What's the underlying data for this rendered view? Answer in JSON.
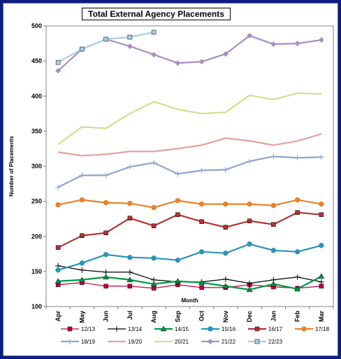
{
  "chart_data": {
    "type": "line",
    "title": "Total External Agency Placements",
    "xlabel": "Month",
    "ylabel": "Number of Placements",
    "ylim": [
      100,
      500
    ],
    "yticks": [
      100,
      150,
      200,
      250,
      300,
      350,
      400,
      450,
      500
    ],
    "grid": false,
    "legend_position": "bottom",
    "categories": [
      "Apr",
      "May",
      "Jun",
      "Jul",
      "Aug",
      "Sep",
      "Oct",
      "Nov",
      "Dec",
      "Jan",
      "Feb",
      "Mar"
    ],
    "series": [
      {
        "name": "12/13",
        "color": "#c0003c",
        "marker": "square",
        "values": [
          131,
          134,
          129,
          129,
          126,
          131,
          127,
          127,
          131,
          128,
          126,
          129
        ]
      },
      {
        "name": "13/14",
        "color": "#000000",
        "marker": "plus",
        "values": [
          158,
          152,
          149,
          149,
          138,
          135,
          135,
          139,
          133,
          138,
          142,
          135
        ]
      },
      {
        "name": "14/15",
        "color": "#009944",
        "marker": "triangle",
        "values": [
          136,
          138,
          142,
          138,
          132,
          136,
          134,
          129,
          124,
          132,
          125,
          143
        ]
      },
      {
        "name": "15/16",
        "color": "#2a94b8",
        "marker": "circle",
        "values": [
          152,
          162,
          174,
          170,
          169,
          166,
          178,
          176,
          189,
          180,
          178,
          187
        ]
      },
      {
        "name": "16/17",
        "color": "#b23232",
        "marker": "square",
        "values": [
          184,
          201,
          205,
          226,
          215,
          231,
          221,
          213,
          222,
          217,
          234,
          231
        ]
      },
      {
        "name": "17/18",
        "color": "#e8832a",
        "marker": "circle",
        "values": [
          245,
          252,
          248,
          247,
          241,
          251,
          246,
          246,
          246,
          244,
          252,
          246
        ]
      },
      {
        "name": "18/19",
        "color": "#8fa4cf",
        "marker": "plus",
        "values": [
          270,
          287,
          287,
          299,
          305,
          289,
          294,
          295,
          307,
          314,
          312,
          313
        ]
      },
      {
        "name": "19/20",
        "color": "#e3a2a0",
        "marker": "none",
        "values": [
          320,
          315,
          317,
          321,
          321,
          325,
          330,
          340,
          336,
          330,
          336,
          346
        ]
      },
      {
        "name": "20/21",
        "color": "#cfe08c",
        "marker": "none",
        "values": [
          331,
          356,
          354,
          375,
          392,
          381,
          375,
          377,
          401,
          395,
          404,
          403
        ]
      },
      {
        "name": "21/22",
        "color": "#a98fc3",
        "marker": "diamond",
        "values": [
          436,
          467,
          481,
          471,
          459,
          447,
          449,
          460,
          486,
          474,
          475,
          480
        ]
      },
      {
        "name": "22/23",
        "color": "#a8cfe2",
        "marker": "square",
        "values": [
          448,
          467,
          481,
          484,
          491,
          null,
          null,
          null,
          null,
          null,
          null,
          null
        ]
      }
    ]
  }
}
